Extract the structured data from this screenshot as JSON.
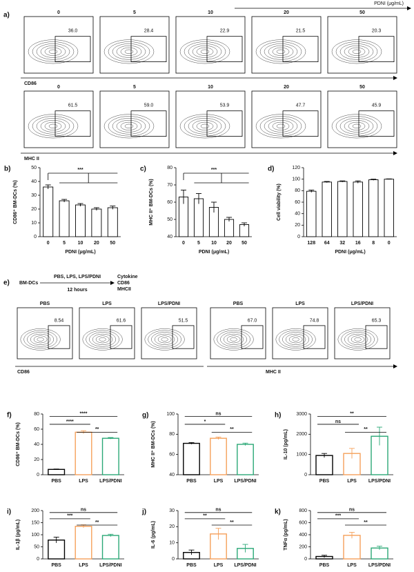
{
  "panel_a": {
    "label": "a)",
    "axis_title": "PDNI (μg/mL)",
    "concentrations": [
      "0",
      "5",
      "10",
      "20",
      "50"
    ],
    "cd86_label": "CD86",
    "cd86_values": [
      "36.0",
      "28.4",
      "22.9",
      "21.5",
      "20.3"
    ],
    "mhc_label": "MHC II",
    "mhc_values": [
      "61.5",
      "59.0",
      "53.9",
      "47.7",
      "45.9"
    ]
  },
  "panel_e": {
    "label": "e)",
    "start": "BM-DCs",
    "treatment": "PBS, LPS, LPS/PDNI",
    "duration": "12 hours",
    "readouts": [
      "Cytokine",
      "CD86",
      "MHCII"
    ],
    "groups": [
      "PBS",
      "LPS",
      "LPS/PDNI",
      "PBS",
      "LPS",
      "LPS/PDNI"
    ],
    "values": [
      "8.54",
      "61.6",
      "51.5",
      "67.0",
      "74.8",
      "65.3"
    ],
    "x_labels": [
      "CD86",
      "MHC II"
    ]
  },
  "chart_data": [
    {
      "type": "bar",
      "label": "b)",
      "ylabel": "CD86⁺ BM-DCs (%)",
      "xlabel": "PDNI (μg/mL)",
      "categories": [
        "0",
        "5",
        "10",
        "20",
        "50"
      ],
      "values": [
        36,
        26,
        23,
        20,
        21
      ],
      "errors": [
        1.5,
        1,
        1,
        1,
        1.2
      ],
      "color": "#000000",
      "ylim": [
        0,
        50
      ],
      "yticks": [
        0,
        10,
        20,
        30,
        40,
        50
      ],
      "annotations": [
        "***"
      ]
    },
    {
      "type": "bar",
      "label": "c)",
      "ylabel": "MHC II⁺ BM-DCs (%)",
      "xlabel": "PDNI (μg/mL)",
      "categories": [
        "0",
        "5",
        "10",
        "20",
        "50"
      ],
      "values": [
        63,
        62,
        57,
        50,
        47
      ],
      "errors": [
        4,
        3,
        3,
        1.2,
        1
      ],
      "color": "#000000",
      "ylim": [
        40,
        80
      ],
      "yticks": [
        40,
        50,
        60,
        70,
        80
      ],
      "annotations": [
        "***"
      ]
    },
    {
      "type": "bar",
      "label": "d)",
      "ylabel": "Cell viability (%)",
      "xlabel": "PDNI (μg/mL)",
      "categories": [
        "128",
        "64",
        "32",
        "16",
        "8",
        "0"
      ],
      "values": [
        79,
        95,
        96,
        95,
        99,
        100
      ],
      "errors": [
        2,
        1,
        1,
        2,
        1,
        0.5
      ],
      "color": "#000000",
      "ylim": [
        0,
        120
      ],
      "yticks": [
        0,
        20,
        40,
        60,
        80,
        100,
        120
      ]
    },
    {
      "type": "bar",
      "label": "f)",
      "ylabel": "CD86⁺ BM-DCs (%)",
      "categories": [
        "PBS",
        "LPS",
        "LPS/PDNI"
      ],
      "values": [
        7,
        56,
        48
      ],
      "errors": [
        0.5,
        2,
        1
      ],
      "colors": [
        "#000000",
        "#f5a05a",
        "#2aa876"
      ],
      "ylim": [
        0,
        80
      ],
      "yticks": [
        0,
        20,
        40,
        60,
        80
      ],
      "annotations": [
        "****",
        "****",
        "**"
      ]
    },
    {
      "type": "bar",
      "label": "g)",
      "ylabel": "MHC II⁺ BM-DCs (%)",
      "categories": [
        "PBS",
        "LPS",
        "LPS/PDNI"
      ],
      "values": [
        71,
        76,
        70
      ],
      "errors": [
        0.8,
        1.2,
        1.2
      ],
      "colors": [
        "#000000",
        "#f5a05a",
        "#2aa876"
      ],
      "ylim": [
        40,
        100
      ],
      "yticks": [
        40,
        60,
        80,
        100
      ],
      "annotations": [
        "ns",
        "*",
        "**"
      ]
    },
    {
      "type": "bar",
      "label": "h)",
      "ylabel": "IL-10 (pg/mL)",
      "categories": [
        "PBS",
        "LPS",
        "LPS/PDNI"
      ],
      "values": [
        950,
        1050,
        1900
      ],
      "errors": [
        100,
        250,
        450
      ],
      "colors": [
        "#000000",
        "#f5a05a",
        "#2aa876"
      ],
      "ylim": [
        0,
        3000
      ],
      "yticks": [
        0,
        1000,
        2000,
        3000
      ],
      "annotations": [
        "**",
        "ns",
        "**"
      ]
    },
    {
      "type": "bar",
      "label": "i)",
      "ylabel": "IL-1β (pg/mL)",
      "categories": [
        "PBS",
        "LPS",
        "LPS/PDNI"
      ],
      "values": [
        78,
        135,
        97
      ],
      "errors": [
        12,
        6,
        5
      ],
      "colors": [
        "#000000",
        "#f5a05a",
        "#2aa876"
      ],
      "ylim": [
        0,
        200
      ],
      "yticks": [
        0,
        50,
        100,
        150,
        200
      ],
      "annotations": [
        "ns",
        "***",
        "**"
      ]
    },
    {
      "type": "bar",
      "label": "j)",
      "ylabel": "IL-6 (pg/mL)",
      "categories": [
        "PBS",
        "LPS",
        "LPS/PDNI"
      ],
      "values": [
        4,
        15.5,
        6.5
      ],
      "errors": [
        1.5,
        3.5,
        2.5
      ],
      "colors": [
        "#000000",
        "#f5a05a",
        "#2aa876"
      ],
      "ylim": [
        0,
        30
      ],
      "yticks": [
        0,
        10,
        20,
        30
      ],
      "annotations": [
        "ns",
        "**",
        "**"
      ]
    },
    {
      "type": "bar",
      "label": "k)",
      "ylabel": "TNFα (pg/mL)",
      "categories": [
        "PBS",
        "LPS",
        "LPS/PDNI"
      ],
      "values": [
        40,
        390,
        180
      ],
      "errors": [
        20,
        50,
        30
      ],
      "colors": [
        "#000000",
        "#f5a05a",
        "#2aa876"
      ],
      "ylim": [
        0,
        800
      ],
      "yticks": [
        0,
        200,
        400,
        600,
        800
      ],
      "annotations": [
        "ns",
        "***",
        "**"
      ]
    }
  ]
}
